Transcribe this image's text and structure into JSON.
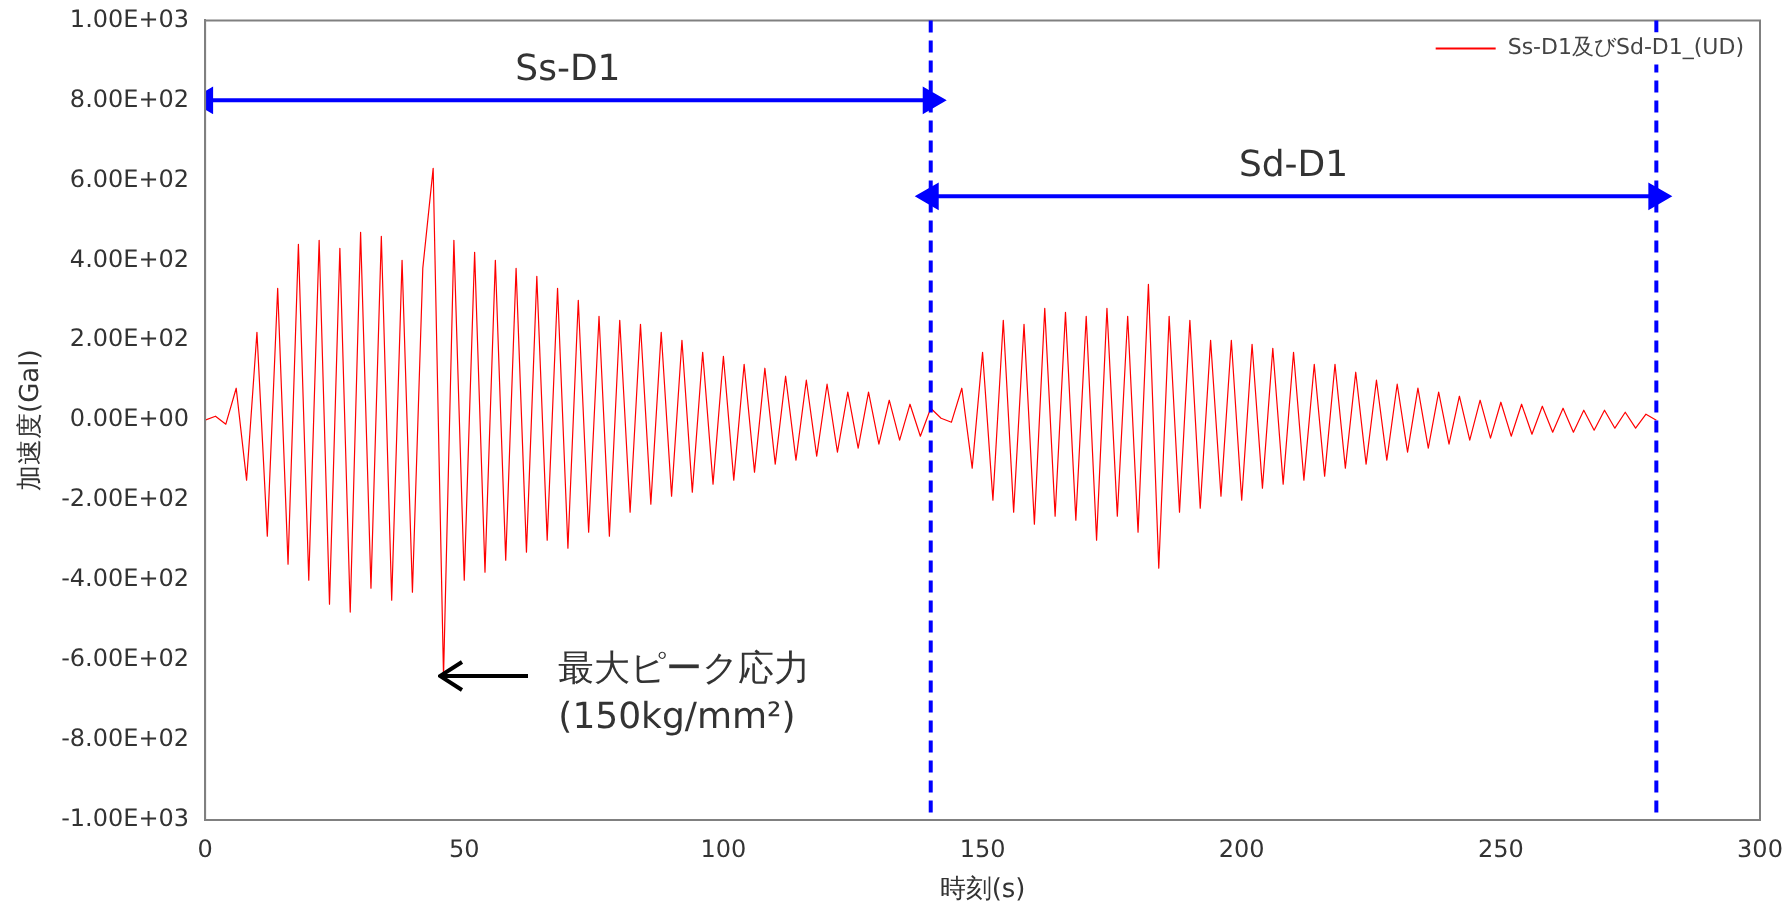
{
  "chart_data": {
    "type": "line",
    "xlabel": "時刻(s)",
    "ylabel": "加速度(Gal)",
    "x": [
      0,
      2,
      4,
      6,
      8,
      10,
      12,
      14,
      16,
      18,
      20,
      22,
      24,
      26,
      28,
      30,
      32,
      34,
      36,
      38,
      40,
      42,
      44,
      46,
      48,
      50,
      52,
      54,
      56,
      58,
      60,
      62,
      64,
      66,
      68,
      70,
      72,
      74,
      76,
      78,
      80,
      82,
      84,
      86,
      88,
      90,
      92,
      94,
      96,
      98,
      100,
      102,
      104,
      106,
      108,
      110,
      112,
      114,
      116,
      118,
      120,
      122,
      124,
      126,
      128,
      130,
      132,
      134,
      136,
      138,
      140,
      142,
      144,
      146,
      148,
      150,
      152,
      154,
      156,
      158,
      160,
      162,
      164,
      166,
      168,
      170,
      172,
      174,
      176,
      178,
      180,
      182,
      184,
      186,
      188,
      190,
      192,
      194,
      196,
      198,
      200,
      202,
      204,
      206,
      208,
      210,
      212,
      214,
      216,
      218,
      220,
      222,
      224,
      226,
      228,
      230,
      232,
      234,
      236,
      238,
      240,
      242,
      244,
      246,
      248,
      250,
      252,
      254,
      256,
      258,
      260,
      262,
      264,
      266,
      268,
      270,
      272,
      274,
      276,
      278,
      280
    ],
    "series": [
      {
        "name": "Ss-D1及びSd-D1_(UD)",
        "color": "#ff0000",
        "values": [
          0,
          10,
          -10,
          80,
          -150,
          220,
          -290,
          330,
          -360,
          440,
          -400,
          450,
          -460,
          430,
          -480,
          470,
          -420,
          460,
          -450,
          400,
          -430,
          380,
          630,
          -640,
          450,
          -400,
          420,
          -380,
          400,
          -350,
          380,
          -330,
          360,
          -300,
          330,
          -320,
          300,
          -280,
          260,
          -290,
          250,
          -230,
          240,
          -210,
          220,
          -190,
          200,
          -180,
          170,
          -160,
          160,
          -150,
          140,
          -130,
          130,
          -110,
          110,
          -100,
          100,
          -90,
          90,
          -80,
          70,
          -70,
          70,
          -60,
          50,
          -50,
          40,
          -40,
          30,
          5,
          -5,
          80,
          -120,
          170,
          -200,
          250,
          -230,
          240,
          -260,
          280,
          -240,
          270,
          -250,
          260,
          -300,
          280,
          -240,
          260,
          -280,
          340,
          -370,
          260,
          -230,
          250,
          -220,
          200,
          -190,
          200,
          -200,
          190,
          -170,
          180,
          -160,
          170,
          -150,
          140,
          -140,
          140,
          -120,
          120,
          -110,
          100,
          -100,
          90,
          -80,
          80,
          -70,
          70,
          -60,
          60,
          -50,
          50,
          -45,
          45,
          -40,
          40,
          -35,
          35,
          -30,
          30,
          -30,
          25,
          -25,
          25,
          -20,
          20,
          -20,
          15,
          0
        ]
      },
      {
        "type": "line",
        "color": "#0000ff",
        "x": [
          0,
          140
        ],
        "values": [
          800,
          800
        ],
        "marker": "triangle"
      },
      {
        "type": "line",
        "color": "#0000ff",
        "x": [
          140,
          280
        ],
        "values": [
          560,
          560
        ],
        "marker": "triangle"
      }
    ],
    "xlim": [
      0,
      300
    ],
    "xticks": [
      0,
      50,
      100,
      150,
      200,
      250,
      300
    ],
    "ylim": [
      -1000,
      1000
    ],
    "yticks": [
      {
        "value": -1000,
        "label": "-1.00E+03"
      },
      {
        "value": -800,
        "label": "-8.00E+02"
      },
      {
        "value": -600,
        "label": "-6.00E+02"
      },
      {
        "value": -400,
        "label": "-4.00E+02"
      },
      {
        "value": -200,
        "label": "-2.00E+02"
      },
      {
        "value": 0,
        "label": "0.00E+00"
      },
      {
        "value": 200,
        "label": "2.00E+02"
      },
      {
        "value": 400,
        "label": "4.00E+02"
      },
      {
        "value": 600,
        "label": "6.00E+02"
      },
      {
        "value": 800,
        "label": "8.00E+02"
      },
      {
        "value": 1000,
        "label": "1.00E+03"
      }
    ],
    "ref_lines": [
      {
        "axis": "x",
        "value": 140,
        "color": "#0000ff",
        "line_style": "dashed"
      },
      {
        "axis": "x",
        "value": 280,
        "color": "#0000ff",
        "line_style": "dashed"
      }
    ],
    "annotations": [
      {
        "text": "Ss-D1",
        "x": 70,
        "y": 800
      },
      {
        "text": "Sd-D1",
        "x": 210,
        "y": 560
      },
      {
        "text": "最大ピーク応力\n(150kg/mm²)",
        "x": 45,
        "y": -640
      }
    ],
    "legend": "top right",
    "grid": false,
    "marker": "none",
    "line_style": "solid"
  }
}
